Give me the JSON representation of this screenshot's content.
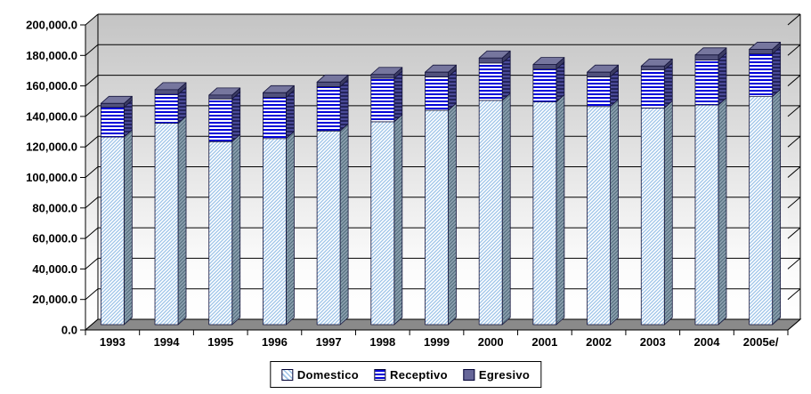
{
  "chart_data": {
    "type": "bar",
    "variant": "3d-stacked-column",
    "title": "",
    "categories": [
      "1993",
      "1994",
      "1995",
      "1996",
      "1997",
      "1998",
      "1999",
      "2000",
      "2001",
      "2002",
      "2003",
      "2004",
      "2005e/"
    ],
    "series": [
      {
        "name": "Domestico",
        "pattern": "light-diagonal-hatch",
        "values": [
          123000,
          132000,
          120000,
          122000,
          127000,
          133000,
          140500,
          147000,
          146000,
          143000,
          142000,
          144000,
          149500
        ]
      },
      {
        "name": "Receptivo",
        "pattern": "horizontal-lines",
        "values": [
          19500,
          19000,
          28000,
          27000,
          29000,
          28500,
          22000,
          24500,
          21500,
          19500,
          25000,
          29500,
          28000
        ]
      },
      {
        "name": "Egresivo",
        "pattern": "solid",
        "values": [
          2500,
          3000,
          2500,
          3000,
          3000,
          2500,
          3000,
          3300,
          3000,
          3000,
          2500,
          3300,
          3000
        ]
      }
    ],
    "ylim": [
      0,
      200000
    ],
    "y_tick_interval": 20000,
    "y_tick_labels": [
      "0.0",
      "20,000.0",
      "40,000.0",
      "60,000.0",
      "80,000.0",
      "100,000.0",
      "120,000.0",
      "140,000.0",
      "160,000.0",
      "180,000.0",
      "200,000.0"
    ],
    "grid": true,
    "legend_position": "bottom",
    "style": {
      "dom_line": "#9cc3e8",
      "dom_side_bg": "#8fa3b2",
      "dom_side_line": "#56707f",
      "rec_line": "#0000d8",
      "rec_side_bg": "#23235a",
      "rec_side_line": "#4a4a98",
      "egr_front": "#52527d",
      "egr_top": "#76769e",
      "egr_side": "#3b3b63",
      "egr_legend": "#666699",
      "outline": "#14143c",
      "grid_line": "#000000",
      "wall_top": "#c4c4c4",
      "wall_bottom": "#fbfbfb",
      "floor": "#8a8a8a",
      "axis": "#000000"
    }
  }
}
